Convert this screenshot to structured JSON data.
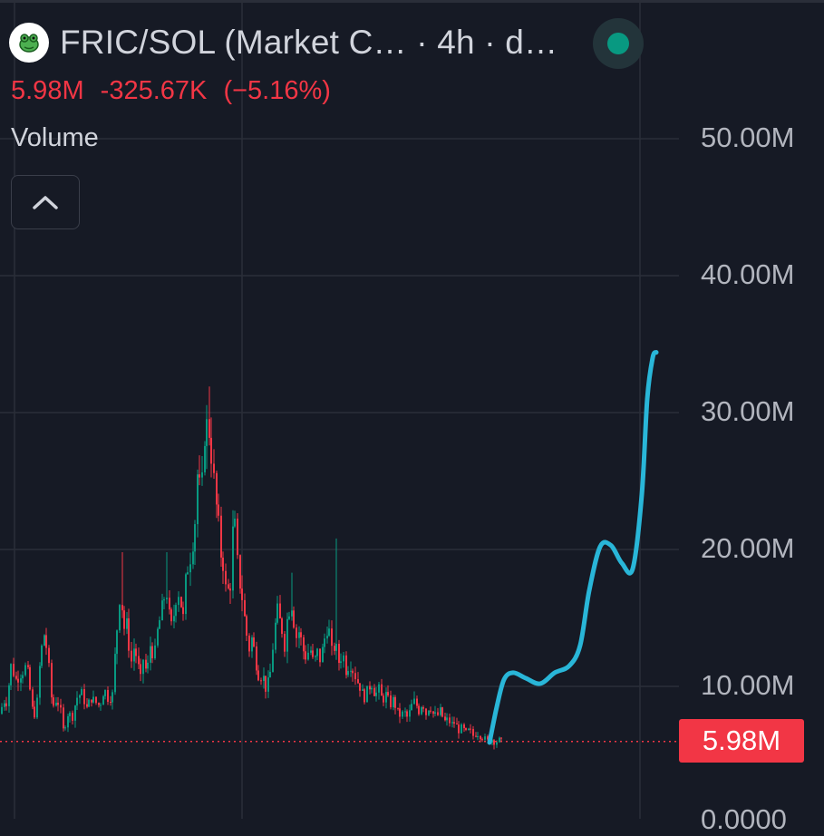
{
  "header": {
    "title": "FRIC/SOL (Market C… · 4h · d…",
    "logo_icon": "frog-token-icon",
    "status_color": "#089981"
  },
  "quote": {
    "last": "5.98M",
    "change": "-325.67K",
    "change_pct": "(−5.16%)",
    "color": "#f23645"
  },
  "volume": {
    "label": "Volume",
    "toggle_icon": "chevron-up-icon"
  },
  "chart_data": {
    "type": "candlestick",
    "y_axis": {
      "ticks": [
        "50.00M",
        "40.00M",
        "30.00M",
        "20.00M",
        "10.00M"
      ],
      "tick_values": [
        50,
        40,
        30,
        20,
        10
      ],
      "partial_bottom_tick": "0.0000",
      "unit": "M"
    },
    "current_price": {
      "label": "5.98M",
      "value": 5.98
    },
    "colors": {
      "up": "#089981",
      "down": "#f23645",
      "projection": "#29b6d8"
    },
    "grid": true,
    "price_path": [
      [
        0,
        8.0
      ],
      [
        4,
        9.0
      ],
      [
        8,
        8.8
      ],
      [
        12,
        11.5
      ],
      [
        18,
        10.5
      ],
      [
        24,
        11.0
      ],
      [
        30,
        11.6
      ],
      [
        35,
        8.5
      ],
      [
        38,
        8.0
      ],
      [
        42,
        9.2
      ],
      [
        45,
        12.5
      ],
      [
        49,
        13.8
      ],
      [
        53,
        12.0
      ],
      [
        58,
        8.5
      ],
      [
        62,
        9.0
      ],
      [
        66,
        8.6
      ],
      [
        70,
        6.8
      ],
      [
        75,
        8.0
      ],
      [
        80,
        7.8
      ],
      [
        85,
        9.2
      ],
      [
        90,
        9.5
      ],
      [
        96,
        8.4
      ],
      [
        100,
        9.2
      ],
      [
        106,
        8.8
      ],
      [
        110,
        8.6
      ],
      [
        115,
        9.8
      ],
      [
        120,
        9.0
      ],
      [
        125,
        9.5
      ],
      [
        128,
        13.5
      ],
      [
        132,
        16.5
      ],
      [
        135,
        15.8
      ],
      [
        138,
        13.5
      ],
      [
        140,
        14.5
      ],
      [
        144,
        11.5
      ],
      [
        148,
        12.8
      ],
      [
        152,
        11.8
      ],
      [
        155,
        10.5
      ],
      [
        158,
        12.0
      ],
      [
        162,
        11.0
      ],
      [
        166,
        13.0
      ],
      [
        170,
        12.0
      ],
      [
        175,
        14.5
      ],
      [
        180,
        16.0
      ],
      [
        183,
        17.5
      ],
      [
        186,
        15.5
      ],
      [
        190,
        14.0
      ],
      [
        194,
        16.5
      ],
      [
        198,
        17.0
      ],
      [
        202,
        15.0
      ],
      [
        206,
        18.5
      ],
      [
        210,
        19.5
      ],
      [
        214,
        21.0
      ],
      [
        218,
        25.5
      ],
      [
        222,
        23.5
      ],
      [
        226,
        28.5
      ],
      [
        230,
        29.5
      ],
      [
        233,
        27.0
      ],
      [
        236,
        25.0
      ],
      [
        240,
        22.5
      ],
      [
        243,
        20.0
      ],
      [
        246,
        19.0
      ],
      [
        250,
        16.5
      ],
      [
        254,
        17.5
      ],
      [
        258,
        22.5
      ],
      [
        262,
        19.0
      ],
      [
        266,
        17.0
      ],
      [
        270,
        15.0
      ],
      [
        274,
        12.5
      ],
      [
        278,
        13.5
      ],
      [
        282,
        12.0
      ],
      [
        286,
        10.5
      ],
      [
        290,
        11.0
      ],
      [
        294,
        9.5
      ],
      [
        298,
        11.0
      ],
      [
        302,
        13.5
      ],
      [
        306,
        15.5
      ],
      [
        310,
        14.5
      ],
      [
        314,
        13.0
      ],
      [
        318,
        15.5
      ],
      [
        322,
        16.0
      ],
      [
        326,
        13.5
      ],
      [
        330,
        14.0
      ],
      [
        334,
        12.8
      ],
      [
        338,
        12.0
      ],
      [
        342,
        13.0
      ],
      [
        346,
        11.5
      ],
      [
        350,
        12.5
      ],
      [
        354,
        11.8
      ],
      [
        358,
        13.5
      ],
      [
        362,
        14.5
      ],
      [
        366,
        12.5
      ],
      [
        370,
        13.0
      ],
      [
        374,
        11.8
      ],
      [
        378,
        12.5
      ],
      [
        382,
        11.2
      ],
      [
        386,
        11.8
      ],
      [
        390,
        11.0
      ],
      [
        394,
        10.5
      ],
      [
        398,
        9.8
      ],
      [
        402,
        9.2
      ],
      [
        406,
        9.8
      ],
      [
        410,
        10.2
      ],
      [
        414,
        9.4
      ],
      [
        418,
        9.8
      ],
      [
        422,
        9.0
      ],
      [
        426,
        9.4
      ],
      [
        430,
        8.6
      ],
      [
        434,
        9.0
      ],
      [
        438,
        8.2
      ],
      [
        442,
        7.8
      ],
      [
        446,
        8.2
      ],
      [
        450,
        7.6
      ],
      [
        454,
        8.6
      ],
      [
        458,
        9.0
      ],
      [
        462,
        8.2
      ],
      [
        466,
        8.8
      ],
      [
        470,
        8.0
      ],
      [
        474,
        8.6
      ],
      [
        478,
        8.0
      ],
      [
        482,
        7.8
      ],
      [
        486,
        8.2
      ],
      [
        490,
        7.4
      ],
      [
        494,
        7.6
      ],
      [
        498,
        7.2
      ],
      [
        502,
        7.4
      ],
      [
        506,
        6.8
      ],
      [
        510,
        7.0
      ],
      [
        514,
        6.6
      ],
      [
        518,
        6.8
      ],
      [
        522,
        6.4
      ],
      [
        526,
        6.6
      ],
      [
        530,
        6.4
      ],
      [
        534,
        6.2
      ],
      [
        538,
        6.0
      ],
      [
        542,
        6.2
      ],
      [
        546,
        5.9
      ],
      [
        550,
        6.1
      ],
      [
        554,
        5.98
      ]
    ],
    "spikes": [
      {
        "x": 230,
        "high": 31.9
      },
      {
        "x": 372,
        "high": 20.8
      },
      {
        "x": 185,
        "high": 19.8
      },
      {
        "x": 135,
        "high": 19.8
      },
      {
        "x": 321,
        "high": 18.3
      }
    ],
    "projection": [
      [
        540,
        5.9
      ],
      [
        548,
        8.5
      ],
      [
        556,
        10.5
      ],
      [
        566,
        11.0
      ],
      [
        580,
        10.6
      ],
      [
        596,
        10.2
      ],
      [
        612,
        11.0
      ],
      [
        628,
        11.5
      ],
      [
        640,
        13.0
      ],
      [
        650,
        17.0
      ],
      [
        662,
        20.2
      ],
      [
        674,
        20.3
      ],
      [
        686,
        19.0
      ],
      [
        698,
        18.6
      ],
      [
        708,
        24.0
      ],
      [
        714,
        31.0
      ],
      [
        720,
        34.0
      ],
      [
        724,
        34.4
      ]
    ]
  }
}
